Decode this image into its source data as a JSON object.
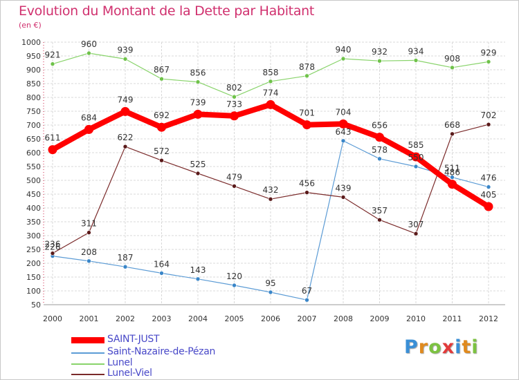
{
  "title": "Evolution du Montant de la Dette par Habitant",
  "unit_label": "(en €)",
  "logo": {
    "text": "Proxiti",
    "letter_colors": [
      "#3a8fd6",
      "#e08a1e",
      "#7cc241",
      "#e23a3a",
      "#3a8fd6",
      "#e08a1e",
      "#7cc241"
    ]
  },
  "chart_data": {
    "type": "line",
    "x": [
      "2000",
      "2001",
      "2002",
      "2003",
      "2004",
      "2005",
      "2006",
      "2007",
      "2008",
      "2009",
      "2010",
      "2011",
      "2012"
    ],
    "ylim": [
      50,
      1000
    ],
    "yticks": [
      50,
      100,
      150,
      200,
      250,
      300,
      350,
      400,
      450,
      500,
      550,
      600,
      650,
      700,
      750,
      800,
      850,
      900,
      950,
      1000
    ],
    "grid": true,
    "legend_position": "bottom-left",
    "series": [
      {
        "name": "SAINT-JUST",
        "color": "#ff0000",
        "values": [
          611,
          684,
          749,
          692,
          739,
          733,
          774,
          701,
          704,
          656,
          585,
          486,
          405
        ]
      },
      {
        "name": "Saint-Nazaire-de-Pézan",
        "color": "#5b9bd5",
        "values": [
          226,
          208,
          187,
          164,
          143,
          120,
          95,
          67,
          643,
          578,
          550,
          511,
          476
        ]
      },
      {
        "name": "Lunel",
        "color": "#88d36a",
        "values": [
          921,
          960,
          939,
          867,
          856,
          802,
          858,
          878,
          940,
          932,
          934,
          908,
          929
        ]
      },
      {
        "name": "Lunel-Viel",
        "color": "#7a2a2a",
        "values": [
          236,
          311,
          622,
          572,
          525,
          479,
          432,
          456,
          439,
          357,
          307,
          668,
          702
        ]
      }
    ],
    "data_labels": {
      "SAINT-JUST": [
        "611",
        "684",
        "749",
        "692",
        "739",
        "733",
        "774",
        "701",
        "704",
        "656",
        "585",
        "486",
        "405"
      ],
      "Saint-Nazaire-de-Pézan": [
        "226",
        "208",
        "187",
        "164",
        "143",
        "120",
        "95",
        "67",
        "643",
        "578",
        "550",
        "511",
        "476"
      ],
      "Lunel": [
        "921",
        "960",
        "939",
        "867",
        "856",
        "802",
        "858",
        "878",
        "940",
        "932",
        "934",
        "908",
        "929"
      ],
      "Lunel-Viel": [
        "236",
        "311",
        "622",
        "572",
        "525",
        "479",
        "432",
        "456",
        "439",
        "357",
        "307",
        "668",
        "702"
      ]
    }
  }
}
